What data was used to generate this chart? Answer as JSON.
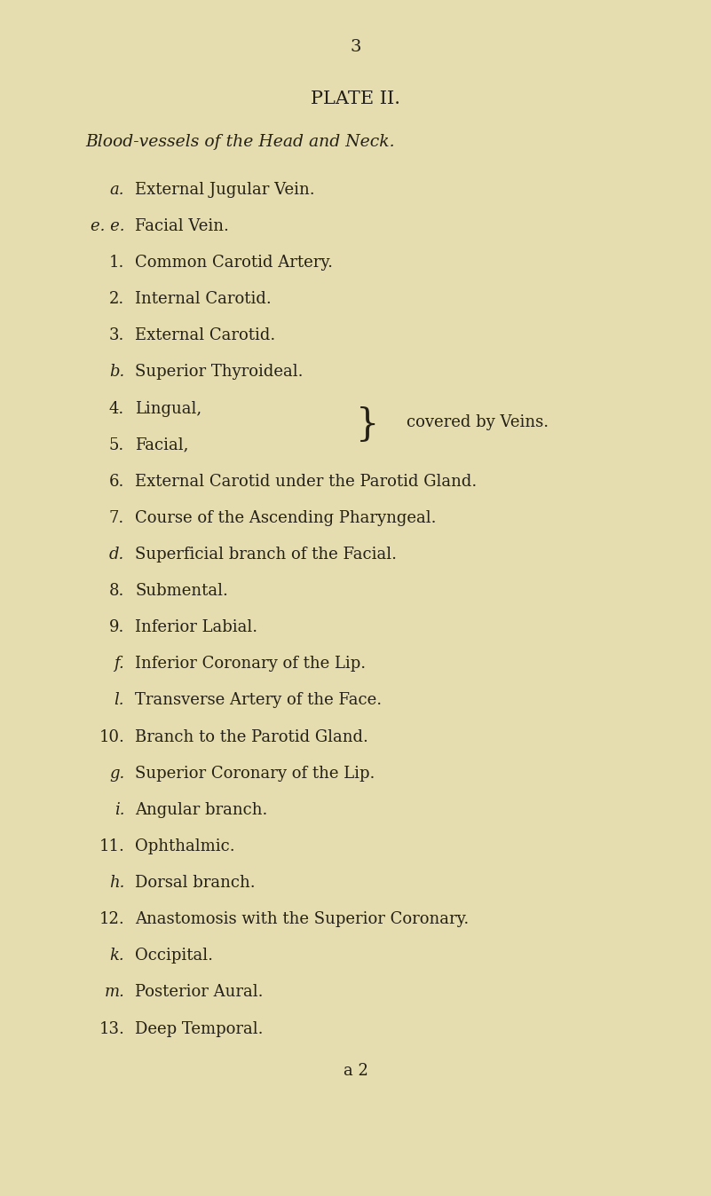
{
  "background_color": "#e5ddb0",
  "page_number": "3",
  "title": "PLATE II.",
  "subtitle": "Blood-vessels of the Head and Neck.",
  "lines": [
    {
      "label": "a.",
      "label_style": "italic",
      "text": "External Jugular Vein."
    },
    {
      "label": "e. e.",
      "label_style": "italic",
      "text": "Facial Vein."
    },
    {
      "label": "1.",
      "label_style": "normal",
      "text": "Common Carotid Artery."
    },
    {
      "label": "2.",
      "label_style": "normal",
      "text": "Internal Carotid."
    },
    {
      "label": "3.",
      "label_style": "normal",
      "text": "External Carotid."
    },
    {
      "label": "b.",
      "label_style": "italic",
      "text": "Superior Thyroideal."
    },
    {
      "label": "4.",
      "label_style": "normal",
      "text": "Lingual,",
      "brace_top": true
    },
    {
      "label": "5.",
      "label_style": "normal",
      "text": "Facial,",
      "brace_bottom": true
    },
    {
      "label": "6.",
      "label_style": "normal",
      "text": "External Carotid under the Parotid Gland."
    },
    {
      "label": "7.",
      "label_style": "normal",
      "text": "Course of the Ascending Pharyngeal."
    },
    {
      "label": "d.",
      "label_style": "italic",
      "text": "Superficial branch of the Facial."
    },
    {
      "label": "8.",
      "label_style": "normal",
      "text": "Submental."
    },
    {
      "label": "9.",
      "label_style": "normal",
      "text": "Inferior Labial."
    },
    {
      "label": "f.",
      "label_style": "italic",
      "text": "Inferior Coronary of the Lip."
    },
    {
      "label": "l.",
      "label_style": "italic",
      "text": "Transverse Artery of the Face."
    },
    {
      "label": "10.",
      "label_style": "normal",
      "text": "Branch to the Parotid Gland."
    },
    {
      "label": "g.",
      "label_style": "italic",
      "text": "Superior Coronary of the Lip."
    },
    {
      "label": "i.",
      "label_style": "italic",
      "text": "Angular branch."
    },
    {
      "label": "11.",
      "label_style": "normal",
      "text": "Ophthalmic."
    },
    {
      "label": "h.",
      "label_style": "italic",
      "text": "Dorsal branch."
    },
    {
      "label": "12.",
      "label_style": "normal",
      "text": "Anastomosis with the Superior Coronary."
    },
    {
      "label": "k.",
      "label_style": "italic",
      "text": "Occipital."
    },
    {
      "label": "m.",
      "label_style": "italic",
      "text": "Posterior Aural."
    },
    {
      "label": "13.",
      "label_style": "normal",
      "text": "Deep Temporal."
    }
  ],
  "brace_text": "covered by Veins.",
  "footer": "a 2",
  "text_color": "#252015",
  "font_size_page_num": 14,
  "font_size_title": 15,
  "font_size_subtitle": 13.5,
  "font_size_body": 13,
  "font_size_footer": 13
}
